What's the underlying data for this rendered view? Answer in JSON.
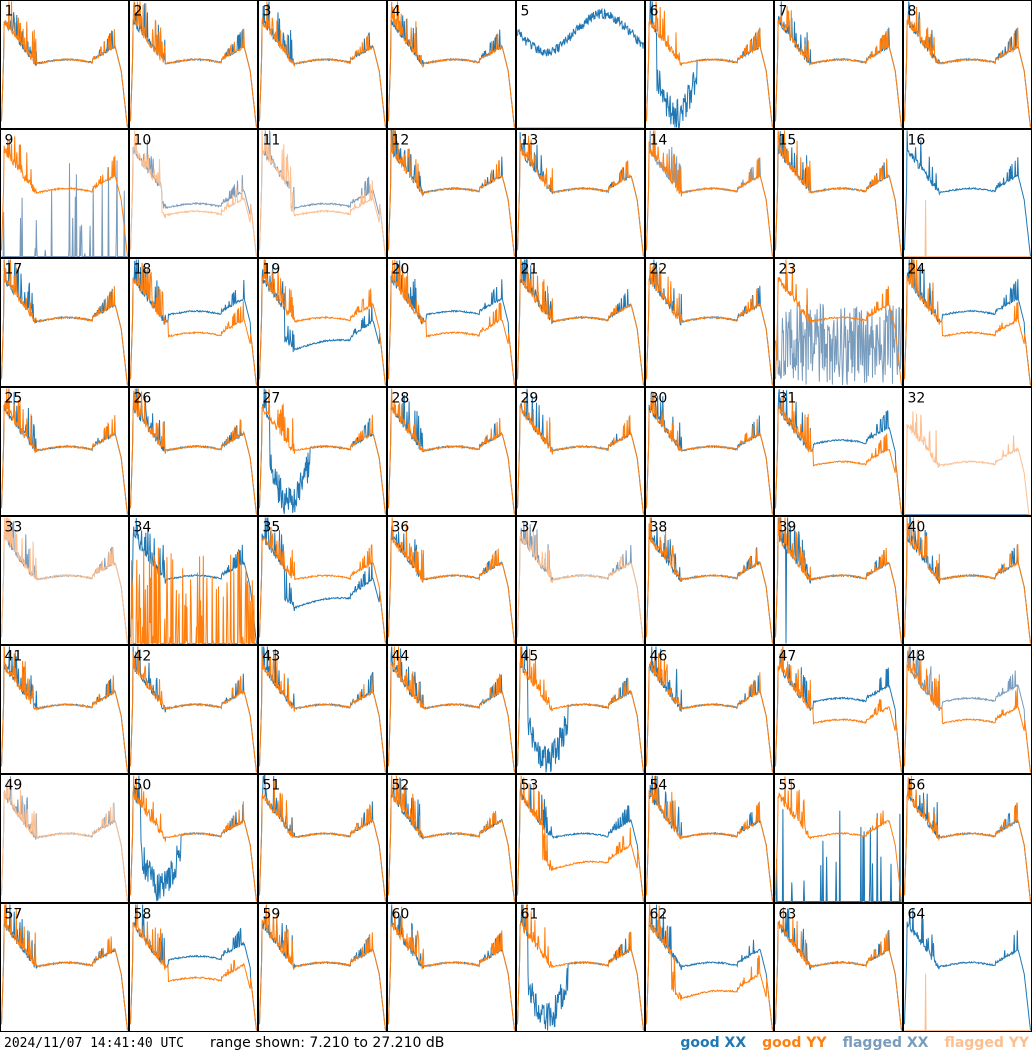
{
  "timestamp": "2024/11/07 14:41:40 UTC",
  "range_text": "range shown: 7.210 to 27.210 dB",
  "legend": [
    {
      "key": "goodXX",
      "label": "good XX",
      "color": "#1f77b4"
    },
    {
      "key": "goodYY",
      "label": "good YY",
      "color": "#ff7f0e"
    },
    {
      "key": "flagXX",
      "label": "flagged XX",
      "color": "#7a9cbc"
    },
    {
      "key": "flagYY",
      "label": "flagged YY",
      "color": "#fdbf8f"
    }
  ],
  "chart_data": {
    "type": "line",
    "title": "",
    "ylim": [
      7.21,
      27.21
    ],
    "unit": "dB",
    "grid": {
      "rows": 8,
      "cols": 8
    },
    "panels": [
      {
        "id": "1",
        "xx": "good",
        "yy": "good",
        "shape": "normal"
      },
      {
        "id": "2",
        "xx": "good",
        "yy": "good",
        "shape": "normal"
      },
      {
        "id": "3",
        "xx": "good",
        "yy": "good",
        "shape": "normal"
      },
      {
        "id": "4",
        "xx": "good",
        "yy": "good",
        "shape": "normal"
      },
      {
        "id": "5",
        "xx": "good",
        "yy": "flagged",
        "shape": "xx-high-yy-zero"
      },
      {
        "id": "6",
        "xx": "good",
        "yy": "good",
        "shape": "xx-dip"
      },
      {
        "id": "7",
        "xx": "good",
        "yy": "good",
        "shape": "normal"
      },
      {
        "id": "8",
        "xx": "good",
        "yy": "good",
        "shape": "normal"
      },
      {
        "id": "9",
        "xx": "flagged",
        "yy": "good",
        "shape": "xx-spikes-low"
      },
      {
        "id": "10",
        "xx": "flagged",
        "yy": "flagged",
        "shape": "low-mid"
      },
      {
        "id": "11",
        "xx": "flagged",
        "yy": "flagged",
        "shape": "low-mid"
      },
      {
        "id": "12",
        "xx": "good",
        "yy": "good",
        "shape": "normal"
      },
      {
        "id": "13",
        "xx": "good",
        "yy": "good",
        "shape": "normal"
      },
      {
        "id": "14",
        "xx": "flagged",
        "yy": "good",
        "shape": "normal"
      },
      {
        "id": "15",
        "xx": "good",
        "yy": "good",
        "shape": "normal"
      },
      {
        "id": "16",
        "xx": "good",
        "yy": "flagged",
        "shape": "xx-only-yy-spike"
      },
      {
        "id": "17",
        "xx": "good",
        "yy": "good",
        "shape": "normal"
      },
      {
        "id": "18",
        "xx": "good",
        "yy": "good",
        "shape": "split"
      },
      {
        "id": "19",
        "xx": "good",
        "yy": "good",
        "shape": "xx-low"
      },
      {
        "id": "20",
        "xx": "good",
        "yy": "good",
        "shape": "split"
      },
      {
        "id": "21",
        "xx": "good",
        "yy": "good",
        "shape": "normal"
      },
      {
        "id": "22",
        "xx": "good",
        "yy": "good",
        "shape": "normal"
      },
      {
        "id": "23",
        "xx": "flagged",
        "yy": "good",
        "shape": "noise"
      },
      {
        "id": "24",
        "xx": "good",
        "yy": "good",
        "shape": "split"
      },
      {
        "id": "25",
        "xx": "good",
        "yy": "good",
        "shape": "normal"
      },
      {
        "id": "26",
        "xx": "good",
        "yy": "good",
        "shape": "normal"
      },
      {
        "id": "27",
        "xx": "good",
        "yy": "good",
        "shape": "xx-dip"
      },
      {
        "id": "28",
        "xx": "good",
        "yy": "good",
        "shape": "normal"
      },
      {
        "id": "29",
        "xx": "good",
        "yy": "good",
        "shape": "normal"
      },
      {
        "id": "30",
        "xx": "good",
        "yy": "good",
        "shape": "normal"
      },
      {
        "id": "31",
        "xx": "good",
        "yy": "good",
        "shape": "split"
      },
      {
        "id": "32",
        "xx": "flagged",
        "yy": "flagged",
        "shape": "yy-only"
      },
      {
        "id": "33",
        "xx": "flagged",
        "yy": "flagged",
        "shape": "normal"
      },
      {
        "id": "34",
        "xx": "good",
        "yy": "good",
        "shape": "yy-spikes-low"
      },
      {
        "id": "35",
        "xx": "good",
        "yy": "good",
        "shape": "xx-low"
      },
      {
        "id": "36",
        "xx": "good",
        "yy": "good",
        "shape": "normal"
      },
      {
        "id": "37",
        "xx": "flagged",
        "yy": "flagged",
        "shape": "normal"
      },
      {
        "id": "38",
        "xx": "good",
        "yy": "good",
        "shape": "normal"
      },
      {
        "id": "39",
        "xx": "good",
        "yy": "good",
        "shape": "xx-spike-yy"
      },
      {
        "id": "40",
        "xx": "good",
        "yy": "good",
        "shape": "normal"
      },
      {
        "id": "41",
        "xx": "good",
        "yy": "good",
        "shape": "normal"
      },
      {
        "id": "42",
        "xx": "good",
        "yy": "good",
        "shape": "normal"
      },
      {
        "id": "43",
        "xx": "good",
        "yy": "good",
        "shape": "normal"
      },
      {
        "id": "44",
        "xx": "good",
        "yy": "good",
        "shape": "normal"
      },
      {
        "id": "45",
        "xx": "good",
        "yy": "good",
        "shape": "xx-dip"
      },
      {
        "id": "46",
        "xx": "good",
        "yy": "good",
        "shape": "normal"
      },
      {
        "id": "47",
        "xx": "good",
        "yy": "good",
        "shape": "split"
      },
      {
        "id": "48",
        "xx": "flagged",
        "yy": "good",
        "shape": "split"
      },
      {
        "id": "49",
        "xx": "flagged",
        "yy": "flagged",
        "shape": "normal"
      },
      {
        "id": "50",
        "xx": "good",
        "yy": "good",
        "shape": "xx-dip"
      },
      {
        "id": "51",
        "xx": "good",
        "yy": "good",
        "shape": "normal"
      },
      {
        "id": "52",
        "xx": "good",
        "yy": "good",
        "shape": "normal"
      },
      {
        "id": "53",
        "xx": "good",
        "yy": "good",
        "shape": "yy-low"
      },
      {
        "id": "54",
        "xx": "good",
        "yy": "good",
        "shape": "normal"
      },
      {
        "id": "55",
        "xx": "good",
        "yy": "good",
        "shape": "xx-spikes-low"
      },
      {
        "id": "56",
        "xx": "good",
        "yy": "good",
        "shape": "normal"
      },
      {
        "id": "57",
        "xx": "good",
        "yy": "good",
        "shape": "normal"
      },
      {
        "id": "58",
        "xx": "good",
        "yy": "good",
        "shape": "split"
      },
      {
        "id": "59",
        "xx": "good",
        "yy": "good",
        "shape": "normal"
      },
      {
        "id": "60",
        "xx": "good",
        "yy": "good",
        "shape": "normal"
      },
      {
        "id": "61",
        "xx": "good",
        "yy": "good",
        "shape": "xx-dip"
      },
      {
        "id": "62",
        "xx": "good",
        "yy": "good",
        "shape": "yy-low"
      },
      {
        "id": "63",
        "xx": "good",
        "yy": "good",
        "shape": "normal"
      },
      {
        "id": "64",
        "xx": "good",
        "yy": "flagged",
        "shape": "xx-only-yy-spike"
      }
    ]
  }
}
